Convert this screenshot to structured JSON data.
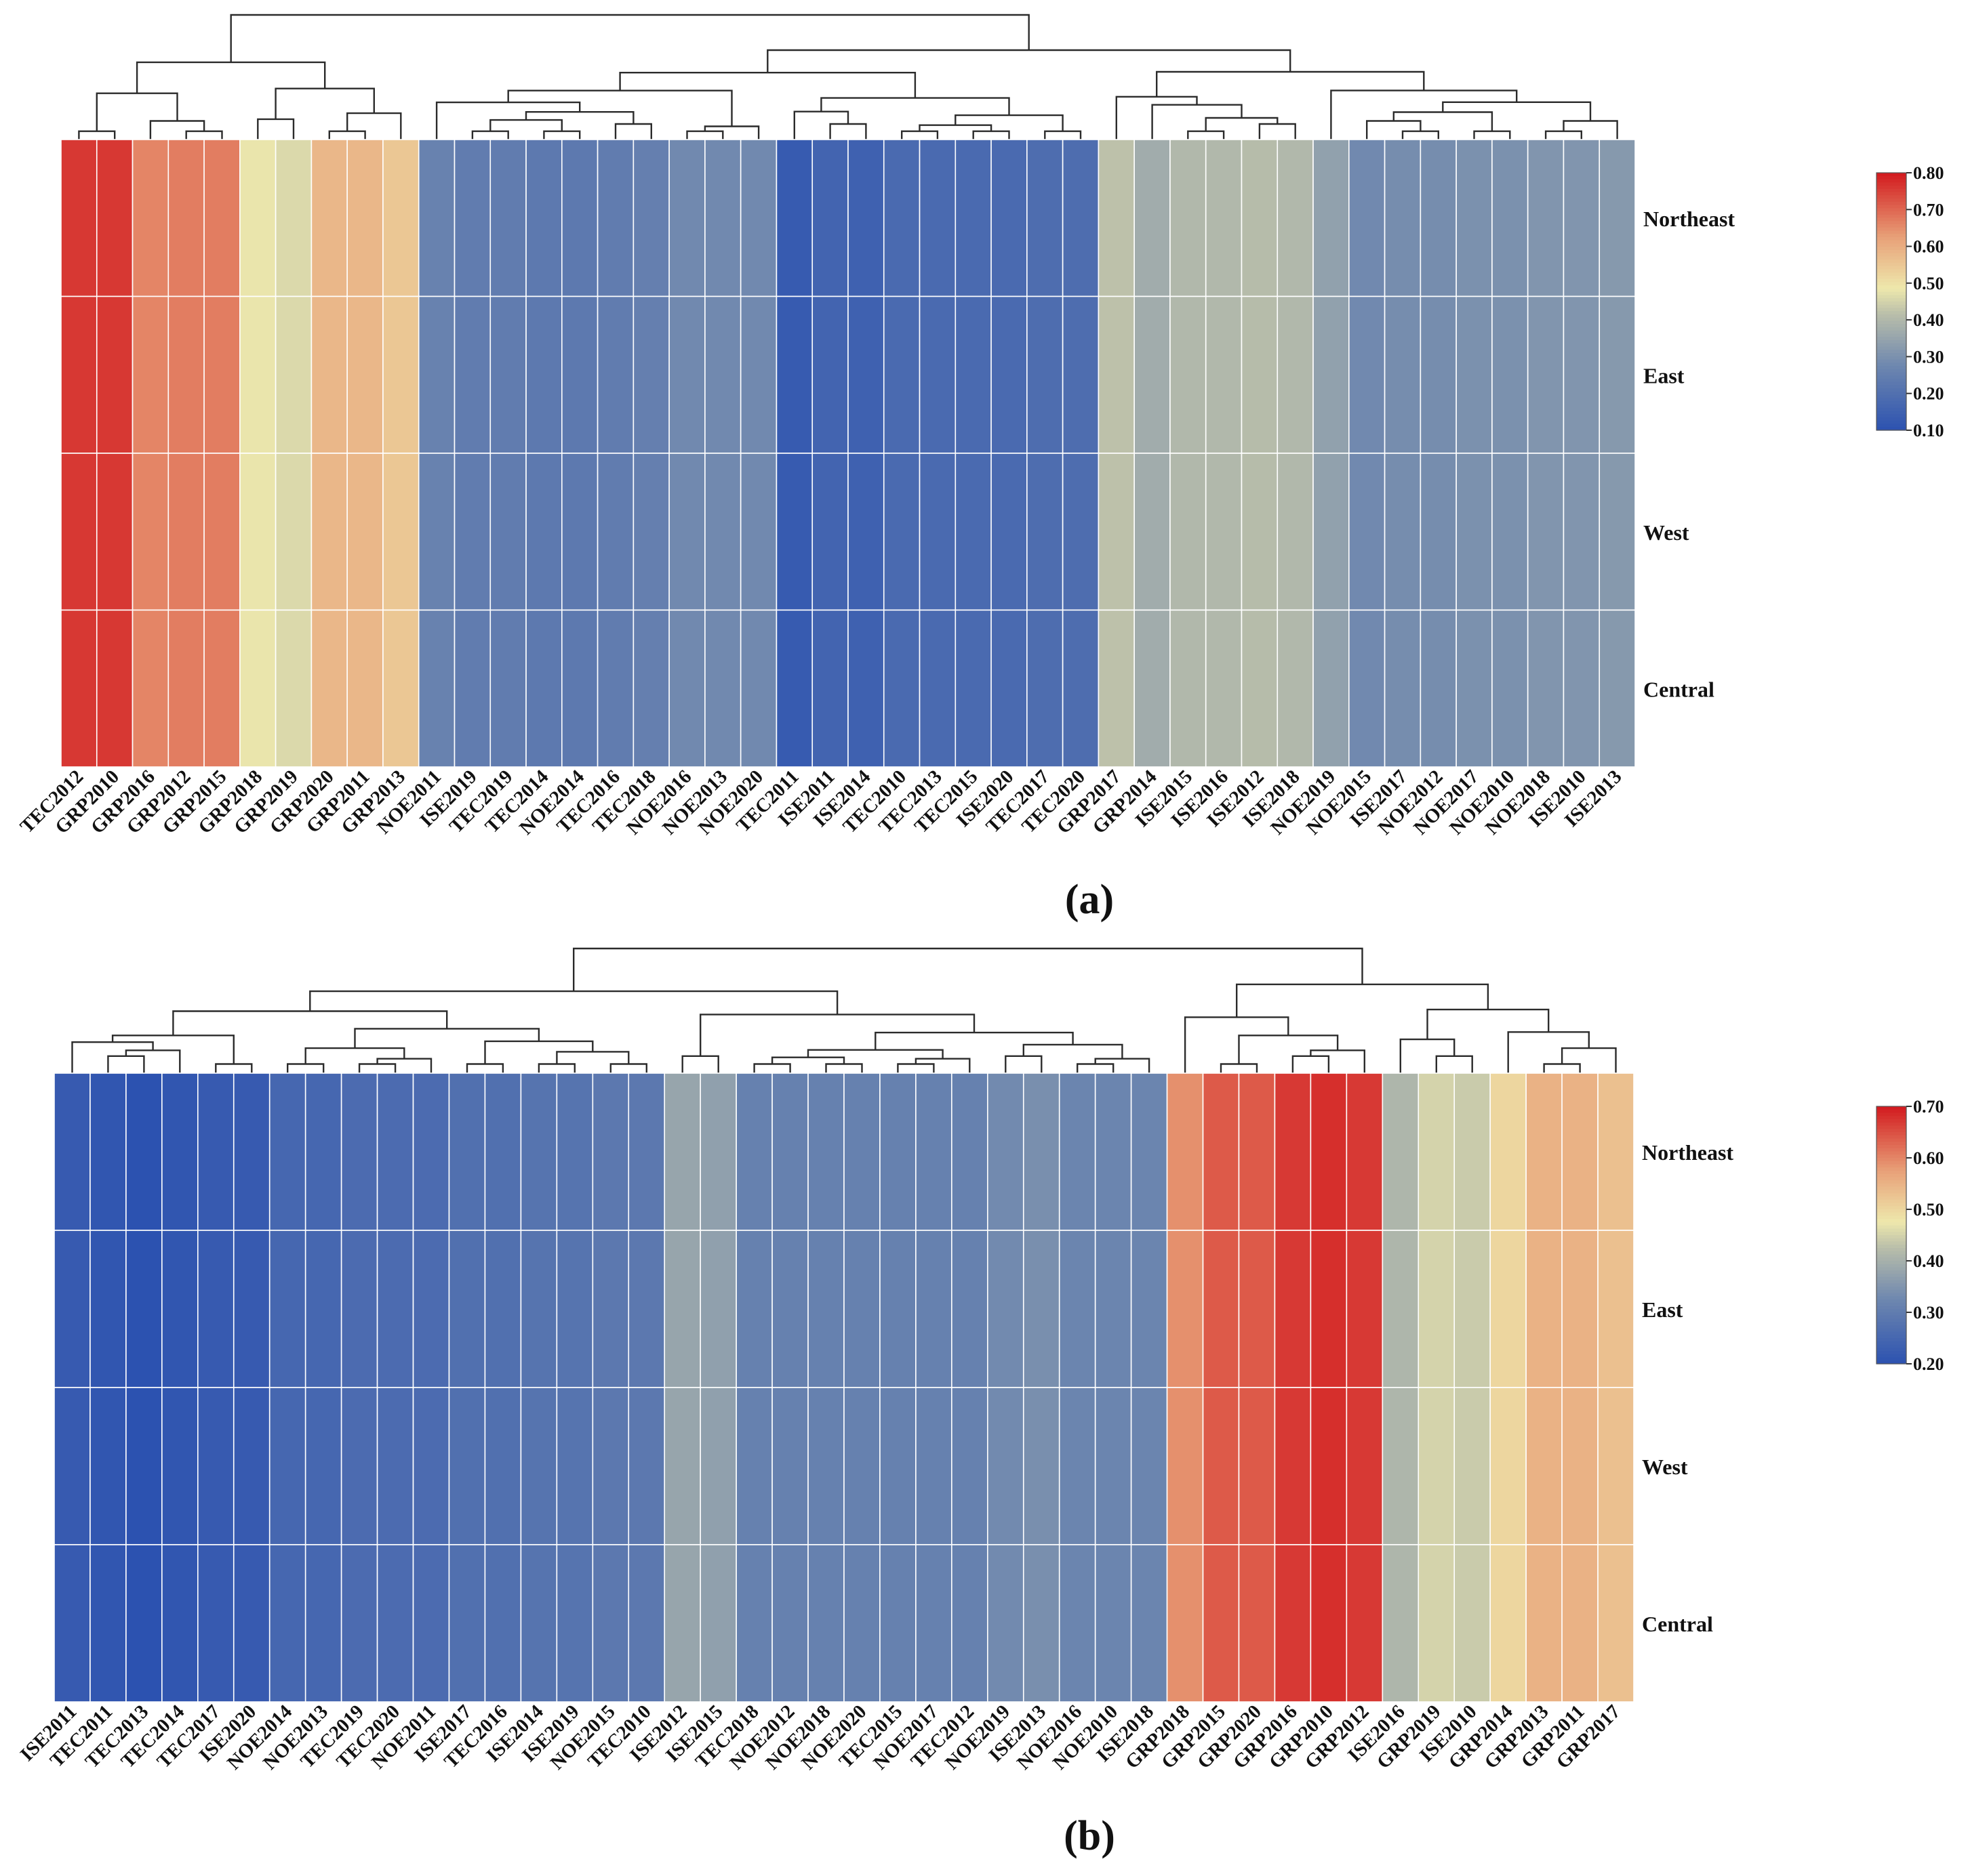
{
  "chart_data": [
    {
      "panel_label": "(a)",
      "type": "heatmap",
      "rows": [
        "Northeast",
        "East",
        "West",
        "Central"
      ],
      "columns": [
        "TEC2012",
        "GRP2010",
        "GRP2016",
        "GRP2012",
        "GRP2015",
        "GRP2018",
        "GRP2019",
        "GRP2020",
        "GRP2011",
        "GRP2013",
        "NOE2011",
        "ISE2019",
        "TEC2019",
        "TEC2014",
        "NOE2014",
        "TEC2016",
        "TEC2018",
        "NOE2016",
        "NOE2013",
        "NOE2020",
        "TEC2011",
        "ISE2011",
        "ISE2014",
        "TEC2010",
        "TEC2013",
        "TEC2015",
        "ISE2020",
        "TEC2017",
        "TEC2020",
        "GRP2017",
        "GRP2014",
        "ISE2015",
        "ISE2016",
        "ISE2012",
        "ISE2018",
        "NOE2019",
        "NOE2015",
        "ISE2017",
        "NOE2012",
        "NOE2017",
        "NOE2010",
        "NOE2018",
        "ISE2010",
        "ISE2013"
      ],
      "values": [
        0.76,
        0.76,
        0.66,
        0.67,
        0.67,
        0.48,
        0.46,
        0.58,
        0.58,
        0.55,
        0.26,
        0.24,
        0.24,
        0.23,
        0.23,
        0.24,
        0.25,
        0.28,
        0.28,
        0.28,
        0.13,
        0.16,
        0.15,
        0.18,
        0.18,
        0.18,
        0.18,
        0.19,
        0.19,
        0.42,
        0.37,
        0.4,
        0.4,
        0.41,
        0.4,
        0.34,
        0.28,
        0.29,
        0.29,
        0.3,
        0.3,
        0.31,
        0.31,
        0.32
      ],
      "colorbar": {
        "min": 0.1,
        "max": 0.8,
        "ticks": [
          "0.80",
          "0.70",
          "0.60",
          "0.50",
          "0.40",
          "0.30",
          "0.20",
          "0.10"
        ]
      }
    },
    {
      "panel_label": "(b)",
      "type": "heatmap",
      "rows": [
        "Northeast",
        "East",
        "West",
        "Central"
      ],
      "columns": [
        "ISE2011",
        "TEC2011",
        "TEC2013",
        "TEC2014",
        "TEC2017",
        "ISE2020",
        "NOE2014",
        "NOE2013",
        "TEC2019",
        "TEC2020",
        "NOE2011",
        "ISE2017",
        "TEC2016",
        "ISE2014",
        "ISE2019",
        "NOE2015",
        "TEC2010",
        "ISE2012",
        "ISE2015",
        "TEC2018",
        "NOE2012",
        "NOE2018",
        "NOE2020",
        "TEC2015",
        "NOE2017",
        "TEC2012",
        "NOE2019",
        "ISE2013",
        "NOE2016",
        "NOE2010",
        "ISE2018",
        "GRP2018",
        "GRP2015",
        "GRP2020",
        "GRP2016",
        "GRP2010",
        "GRP2012",
        "ISE2016",
        "GRP2019",
        "ISE2010",
        "GRP2014",
        "GRP2013",
        "GRP2011",
        "GRP2017"
      ],
      "values": [
        0.22,
        0.21,
        0.2,
        0.21,
        0.22,
        0.22,
        0.25,
        0.25,
        0.26,
        0.26,
        0.26,
        0.27,
        0.27,
        0.28,
        0.28,
        0.29,
        0.29,
        0.38,
        0.37,
        0.31,
        0.31,
        0.31,
        0.31,
        0.31,
        0.31,
        0.31,
        0.33,
        0.34,
        0.32,
        0.32,
        0.32,
        0.59,
        0.64,
        0.64,
        0.67,
        0.68,
        0.67,
        0.41,
        0.45,
        0.44,
        0.5,
        0.55,
        0.55,
        0.53
      ],
      "colorbar": {
        "min": 0.2,
        "max": 0.7,
        "ticks": [
          "0.70",
          "0.60",
          "0.50",
          "0.40",
          "0.30",
          "0.20"
        ]
      }
    }
  ]
}
